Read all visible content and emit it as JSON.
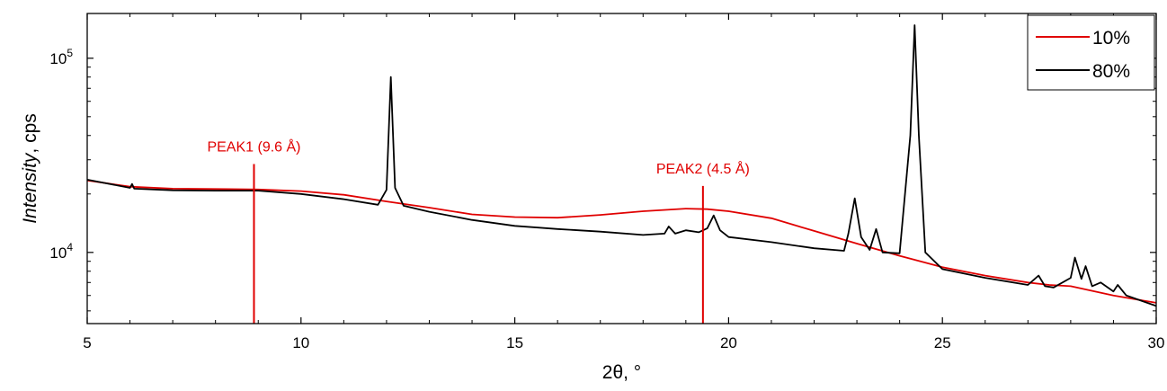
{
  "chart_data": {
    "type": "line",
    "xlabel": "2θ, °",
    "ylabel_italic": "Intensity",
    "ylabel_rest": ", cps",
    "xlim": [
      5,
      30
    ],
    "ylim": [
      4300,
      170000
    ],
    "yscale": "log",
    "x_ticks": [
      5,
      10,
      15,
      20,
      25,
      30
    ],
    "x_tick_labels": [
      "5",
      "10",
      "15",
      "20",
      "25",
      "30"
    ],
    "y_ticks": [
      10000,
      100000
    ],
    "y_tick_base": "10",
    "y_tick_exponents": [
      "4",
      "5"
    ],
    "grid": false,
    "legend_position": "top-right",
    "annotation_color": "#e00000",
    "annotations": [
      {
        "label": "PEAK1 (9.6 Å)",
        "x": 8.9,
        "y_top": 28500
      },
      {
        "label": "PEAK2 (4.5 Å)",
        "x": 19.4,
        "y_top": 22000
      }
    ],
    "series": [
      {
        "name": "10%",
        "color": "#e00000",
        "points": [
          [
            5,
            23500
          ],
          [
            6,
            21800
          ],
          [
            7,
            21300
          ],
          [
            8,
            21200
          ],
          [
            9,
            21100
          ],
          [
            10,
            20700
          ],
          [
            11,
            19800
          ],
          [
            12,
            18300
          ],
          [
            13,
            17000
          ],
          [
            14,
            15700
          ],
          [
            15,
            15200
          ],
          [
            16,
            15100
          ],
          [
            17,
            15600
          ],
          [
            18,
            16300
          ],
          [
            19,
            16800
          ],
          [
            19.5,
            16700
          ],
          [
            20,
            16300
          ],
          [
            21,
            15000
          ],
          [
            22,
            12900
          ],
          [
            23,
            11100
          ],
          [
            24,
            9600
          ],
          [
            25,
            8400
          ],
          [
            26,
            7600
          ],
          [
            27,
            7000
          ],
          [
            27.5,
            6800
          ],
          [
            28,
            6700
          ],
          [
            29,
            6000
          ],
          [
            30,
            5500
          ]
        ]
      },
      {
        "name": "80%",
        "color": "#000000",
        "points": [
          [
            5,
            23700
          ],
          [
            6,
            21500
          ],
          [
            6.05,
            22500
          ],
          [
            6.1,
            21300
          ],
          [
            7,
            20900
          ],
          [
            8,
            20800
          ],
          [
            9,
            20800
          ],
          [
            10,
            20000
          ],
          [
            11,
            18800
          ],
          [
            11.8,
            17600
          ],
          [
            12,
            21000
          ],
          [
            12.1,
            80000
          ],
          [
            12.2,
            21500
          ],
          [
            12.4,
            17400
          ],
          [
            13,
            16200
          ],
          [
            14,
            14700
          ],
          [
            15,
            13700
          ],
          [
            16,
            13200
          ],
          [
            17,
            12800
          ],
          [
            18,
            12300
          ],
          [
            18.5,
            12500
          ],
          [
            18.6,
            13600
          ],
          [
            18.75,
            12500
          ],
          [
            19,
            13000
          ],
          [
            19.3,
            12700
          ],
          [
            19.5,
            13300
          ],
          [
            19.65,
            15500
          ],
          [
            19.8,
            13000
          ],
          [
            20,
            12000
          ],
          [
            21,
            11300
          ],
          [
            22,
            10500
          ],
          [
            22.7,
            10200
          ],
          [
            22.8,
            12500
          ],
          [
            22.95,
            19000
          ],
          [
            23.1,
            12000
          ],
          [
            23.3,
            10300
          ],
          [
            23.45,
            13200
          ],
          [
            23.6,
            10000
          ],
          [
            24,
            9900
          ],
          [
            24.25,
            40000
          ],
          [
            24.35,
            148000
          ],
          [
            24.45,
            40000
          ],
          [
            24.6,
            10000
          ],
          [
            25,
            8200
          ],
          [
            26,
            7400
          ],
          [
            27,
            6800
          ],
          [
            27.25,
            7600
          ],
          [
            27.4,
            6700
          ],
          [
            27.6,
            6600
          ],
          [
            28,
            7400
          ],
          [
            28.1,
            9400
          ],
          [
            28.25,
            7300
          ],
          [
            28.35,
            8500
          ],
          [
            28.5,
            6700
          ],
          [
            28.7,
            7000
          ],
          [
            29,
            6300
          ],
          [
            29.1,
            6800
          ],
          [
            29.3,
            6000
          ],
          [
            30,
            5300
          ]
        ]
      }
    ]
  }
}
